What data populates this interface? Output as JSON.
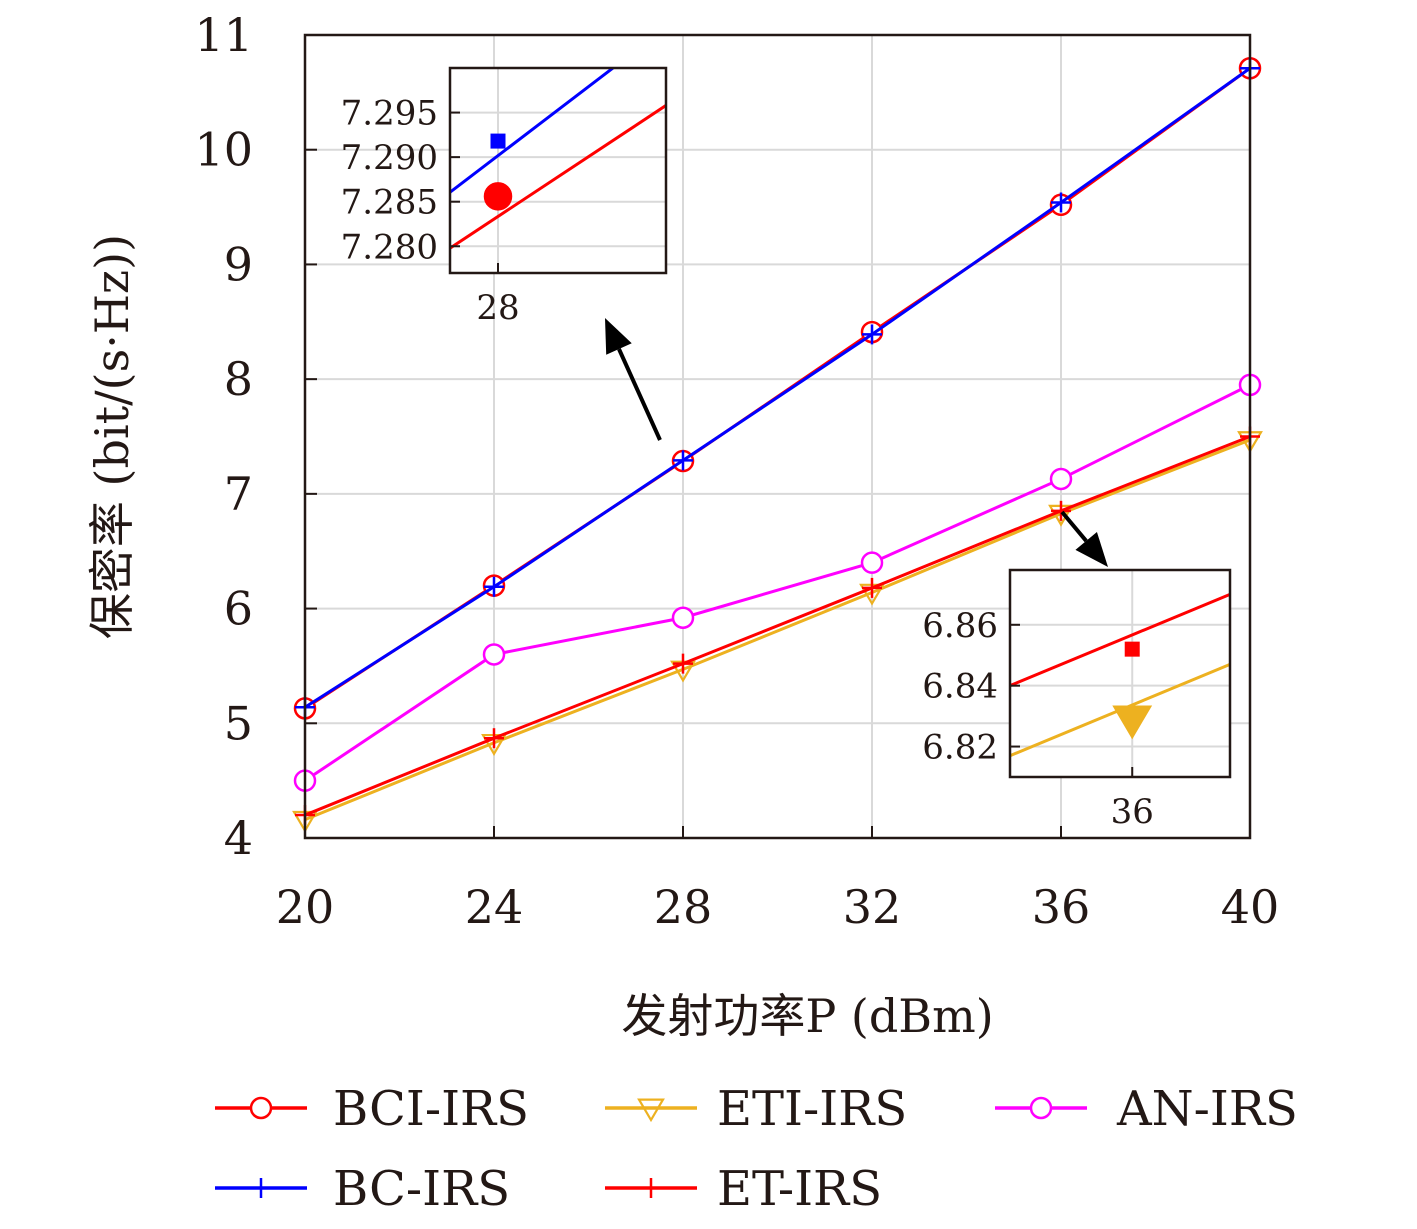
{
  "chart_data": {
    "type": "line",
    "xlabel": "发射功率P (dBm)",
    "ylabel": "保密率 (bit/(s·Hz))",
    "x": [
      20,
      24,
      28,
      32,
      36,
      40
    ],
    "xlim": [
      20,
      40
    ],
    "ylim": [
      4,
      11
    ],
    "xticks": [
      "20",
      "24",
      "28",
      "32",
      "36",
      "40"
    ],
    "yticks": [
      "4",
      "5",
      "6",
      "7",
      "8",
      "9",
      "10",
      "11"
    ],
    "grid": true,
    "legend_position": "bottom",
    "series": [
      {
        "name": "BCI-IRS",
        "color": "#ff0000",
        "marker": "circle",
        "values": [
          5.13,
          6.2,
          7.286,
          8.41,
          9.52,
          10.71
        ]
      },
      {
        "name": "ETI-IRS",
        "color": "#edb120",
        "marker": "triangle-down",
        "values": [
          4.16,
          4.83,
          5.47,
          6.14,
          6.828,
          7.47
        ]
      },
      {
        "name": "AN-IRS",
        "color": "#ff00ff",
        "marker": "circle",
        "values": [
          4.5,
          5.6,
          5.92,
          6.4,
          7.13,
          7.95
        ]
      },
      {
        "name": "BC-IRS",
        "color": "#0000ff",
        "marker": "plus",
        "values": [
          5.14,
          6.19,
          7.292,
          8.39,
          9.54,
          10.71
        ]
      },
      {
        "name": "ET-IRS",
        "color": "#ff0000",
        "marker": "plus",
        "values": [
          4.2,
          4.87,
          5.52,
          6.18,
          6.852,
          7.5
        ]
      }
    ],
    "insets": [
      {
        "xticks": [
          "28"
        ],
        "yticks": [
          "7.280",
          "7.285",
          "7.290",
          "7.295"
        ],
        "xlim": [
          27.2,
          30.8
        ],
        "ylim": [
          7.277,
          7.3
        ],
        "series": [
          {
            "name": "BC-IRS",
            "color": "#0000ff",
            "marker": "square",
            "x": [
              26.8,
              30.5
            ],
            "y": [
              7.284,
              7.303
            ],
            "point": [
              28,
              7.2918
            ]
          },
          {
            "name": "BCI-IRS",
            "color": "#ff0000",
            "marker": "circle",
            "x": [
              26.8,
              30.8
            ],
            "y": [
              7.278,
              7.2958
            ],
            "point": [
              28,
              7.2856
            ]
          }
        ]
      },
      {
        "xticks": [
          "36"
        ],
        "yticks": [
          "6.82",
          "6.84",
          "6.86"
        ],
        "xlim": [
          35.0,
          36.8
        ],
        "ylim": [
          6.81,
          6.878
        ],
        "series": [
          {
            "name": "ET-IRS",
            "color": "#ff0000",
            "marker": "square",
            "x": [
              35.0,
              36.8
            ],
            "y": [
              6.84,
              6.87
            ],
            "point": [
              36,
              6.852
            ]
          },
          {
            "name": "ETI-IRS",
            "color": "#edb120",
            "marker": "triangle-down",
            "x": [
              35.0,
              36.8
            ],
            "y": [
              6.817,
              6.847
            ],
            "point": [
              36,
              6.829
            ]
          }
        ]
      }
    ]
  }
}
